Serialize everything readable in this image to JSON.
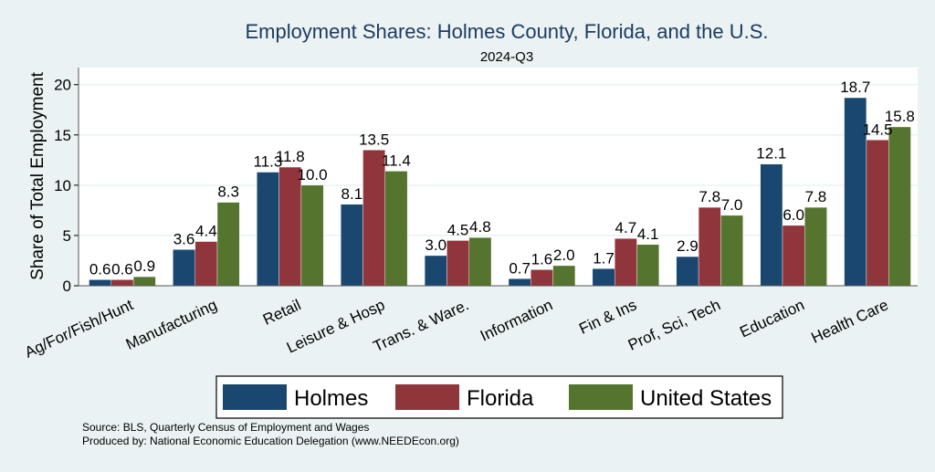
{
  "chart_data": {
    "type": "bar",
    "title": "Employment Shares: Holmes County, Florida, and the U.S.",
    "subtitle": "2024-Q3",
    "xlabel": "",
    "ylabel": "Share of Total Employment",
    "ylim": [
      0,
      21.7
    ],
    "yticks": [
      0,
      5,
      10,
      15,
      20
    ],
    "grid": true,
    "legend_position": "bottom",
    "categories": [
      "Ag/For/Fish/Hunt",
      "Manufacturing",
      "Retail",
      "Leisure & Hosp",
      "Trans. & Ware.",
      "Information",
      "Fin & Ins",
      "Prof, Sci, Tech",
      "Education",
      "Health Care"
    ],
    "series": [
      {
        "name": "Holmes",
        "color": "#1a476f",
        "values": [
          0.6,
          3.6,
          11.3,
          8.1,
          3.0,
          0.7,
          1.7,
          2.9,
          12.1,
          18.7
        ]
      },
      {
        "name": "Florida",
        "color": "#90353b",
        "values": [
          0.6,
          4.4,
          11.8,
          13.5,
          4.5,
          1.6,
          4.7,
          7.8,
          6.0,
          14.5
        ]
      },
      {
        "name": "United States",
        "color": "#55752f",
        "values": [
          0.9,
          8.3,
          10.0,
          11.4,
          4.8,
          2.0,
          4.1,
          7.0,
          7.8,
          15.8
        ]
      }
    ],
    "notes": [
      "Source: BLS, Quarterly Census of Employment and Wages",
      "Produced by: National Economic Education Delegation (www.NEEDEcon.org)"
    ]
  }
}
